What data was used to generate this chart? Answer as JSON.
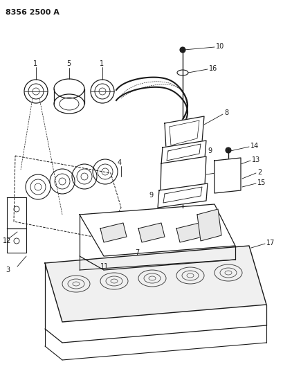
{
  "title": "8356 2500 A",
  "bg_color": "#ffffff",
  "line_color": "#1a1a1a",
  "title_fontsize": 8,
  "label_fontsize": 7,
  "fig_width": 4.1,
  "fig_height": 5.33,
  "dpi": 100
}
